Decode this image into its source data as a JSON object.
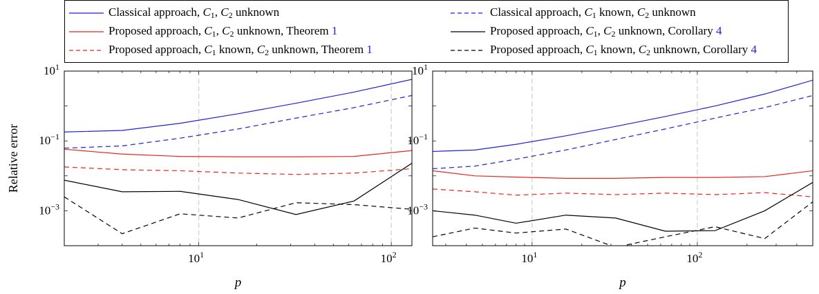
{
  "legend": {
    "items": [
      {
        "key": "classical_both",
        "text": "Classical approach, C1, C2 unknown",
        "color": "#1f1fd6",
        "dash": "solid",
        "parts": [
          {
            "t": "Classical approach, "
          },
          {
            "t": "C",
            "i": true
          },
          {
            "t": "1",
            "sub": true
          },
          {
            "t": ", "
          },
          {
            "t": "C",
            "i": true
          },
          {
            "t": "2",
            "sub": true
          },
          {
            "t": " unknown"
          }
        ]
      },
      {
        "key": "classical_c1known",
        "text": "Classical approach, C1 known, C2 unknown",
        "color": "#1f1fd6",
        "dash": "dashed",
        "parts": [
          {
            "t": "Classical approach, "
          },
          {
            "t": "C",
            "i": true
          },
          {
            "t": "1",
            "sub": true
          },
          {
            "t": " known, "
          },
          {
            "t": "C",
            "i": true
          },
          {
            "t": "2",
            "sub": true
          },
          {
            "t": " unknown"
          }
        ]
      },
      {
        "key": "prop_thm_both",
        "text": "Proposed approach, C1, C2 unknown, Theorem 1",
        "color": "#e8241f",
        "dash": "solid",
        "parts": [
          {
            "t": "Proposed approach, "
          },
          {
            "t": "C",
            "i": true
          },
          {
            "t": "1",
            "sub": true
          },
          {
            "t": ", "
          },
          {
            "t": "C",
            "i": true
          },
          {
            "t": "2",
            "sub": true
          },
          {
            "t": " unknown, Theorem "
          },
          {
            "t": "1",
            "ref": true
          }
        ]
      },
      {
        "key": "prop_cor_both",
        "text": "Proposed approach, C1, C2 unknown, Corollary 4",
        "color": "#000000",
        "dash": "solid",
        "parts": [
          {
            "t": "Proposed approach, "
          },
          {
            "t": "C",
            "i": true
          },
          {
            "t": "1",
            "sub": true
          },
          {
            "t": ", "
          },
          {
            "t": "C",
            "i": true
          },
          {
            "t": "2",
            "sub": true
          },
          {
            "t": " unknown, Corollary "
          },
          {
            "t": "4",
            "ref": true
          }
        ]
      },
      {
        "key": "prop_thm_c1known",
        "text": "Proposed approach, C1 known, C2 unknown, Theorem 1",
        "color": "#e8241f",
        "dash": "dashed",
        "parts": [
          {
            "t": "Proposed approach, "
          },
          {
            "t": "C",
            "i": true
          },
          {
            "t": "1",
            "sub": true
          },
          {
            "t": " known, "
          },
          {
            "t": "C",
            "i": true
          },
          {
            "t": "2",
            "sub": true
          },
          {
            "t": " unknown, Theorem "
          },
          {
            "t": "1",
            "ref": true
          }
        ]
      },
      {
        "key": "prop_cor_c1known",
        "text": "Proposed approach, C1 known, C2 unknown, Corollary 4",
        "color": "#000000",
        "dash": "dashed",
        "parts": [
          {
            "t": "Proposed approach, "
          },
          {
            "t": "C",
            "i": true
          },
          {
            "t": "1",
            "sub": true
          },
          {
            "t": " known, "
          },
          {
            "t": "C",
            "i": true
          },
          {
            "t": "2",
            "sub": true
          },
          {
            "t": " unknown, Corollary "
          },
          {
            "t": "4",
            "ref": true
          }
        ]
      }
    ]
  },
  "chart_data": [
    {
      "type": "line",
      "scale": "log-log",
      "xlabel": "p",
      "ylabel": "Relative error",
      "xlim": [
        2,
        128
      ],
      "ylim": [
        0.0001,
        10
      ],
      "xticks": [
        {
          "v": 10,
          "base": "10",
          "exp": "1"
        },
        {
          "v": 100,
          "base": "10",
          "exp": "2"
        }
      ],
      "yticks": [
        {
          "v": 10,
          "base": "10",
          "exp": "1"
        },
        {
          "v": 0.1,
          "base": "10",
          "exp": "−1"
        },
        {
          "v": 0.001,
          "base": "10",
          "exp": "−3"
        }
      ],
      "vgrid": [
        10,
        100
      ],
      "x": [
        2,
        4,
        8,
        16,
        32,
        64,
        128
      ],
      "series": [
        {
          "key": "classical_both",
          "values": [
            0.18,
            0.2,
            0.32,
            0.6,
            1.2,
            2.5,
            5.8
          ]
        },
        {
          "key": "classical_c1known",
          "values": [
            0.062,
            0.072,
            0.12,
            0.22,
            0.45,
            0.9,
            2.0
          ]
        },
        {
          "key": "prop_thm_both",
          "values": [
            0.058,
            0.042,
            0.036,
            0.035,
            0.035,
            0.036,
            0.053
          ]
        },
        {
          "key": "prop_thm_c1known",
          "values": [
            0.018,
            0.015,
            0.014,
            0.012,
            0.011,
            0.012,
            0.016
          ]
        },
        {
          "key": "prop_cor_both",
          "values": [
            0.0075,
            0.0035,
            0.0036,
            0.0021,
            0.00078,
            0.0019,
            0.023
          ]
        },
        {
          "key": "prop_cor_c1known",
          "values": [
            0.0025,
            0.00022,
            0.00082,
            0.00062,
            0.0017,
            0.0015,
            0.0011
          ]
        }
      ]
    },
    {
      "type": "line",
      "scale": "log-log",
      "xlabel": "p",
      "ylabel": "",
      "xlim": [
        2.5,
        500
      ],
      "ylim": [
        0.0001,
        10
      ],
      "xticks": [
        {
          "v": 10,
          "base": "10",
          "exp": "1"
        },
        {
          "v": 100,
          "base": "10",
          "exp": "2"
        }
      ],
      "yticks": [
        {
          "v": 10,
          "base": "10",
          "exp": "1"
        },
        {
          "v": 0.1,
          "base": "10",
          "exp": "−1"
        },
        {
          "v": 0.001,
          "base": "10",
          "exp": "−3"
        }
      ],
      "vgrid": [
        10,
        100
      ],
      "x": [
        2.5,
        4.5,
        8,
        16,
        32,
        64,
        128,
        256,
        500
      ],
      "series": [
        {
          "key": "classical_both",
          "values": [
            0.05,
            0.055,
            0.08,
            0.14,
            0.26,
            0.5,
            1.0,
            2.2,
            5.5
          ]
        },
        {
          "key": "classical_c1known",
          "values": [
            0.016,
            0.019,
            0.03,
            0.055,
            0.11,
            0.22,
            0.45,
            0.9,
            2.0
          ]
        },
        {
          "key": "prop_thm_both",
          "values": [
            0.014,
            0.01,
            0.0092,
            0.0085,
            0.0085,
            0.009,
            0.009,
            0.0095,
            0.014
          ]
        },
        {
          "key": "prop_thm_c1known",
          "values": [
            0.0042,
            0.0035,
            0.0028,
            0.0032,
            0.0029,
            0.0032,
            0.0029,
            0.0033,
            0.0025
          ]
        },
        {
          "key": "prop_cor_both",
          "values": [
            0.001,
            0.00075,
            0.00044,
            0.00075,
            0.00062,
            0.00026,
            0.00027,
            0.001,
            0.0065
          ]
        },
        {
          "key": "prop_cor_c1known",
          "values": [
            0.00018,
            0.00032,
            0.00023,
            0.0003,
            9e-05,
            0.00018,
            0.00035,
            0.00016,
            0.0018
          ]
        }
      ]
    }
  ]
}
